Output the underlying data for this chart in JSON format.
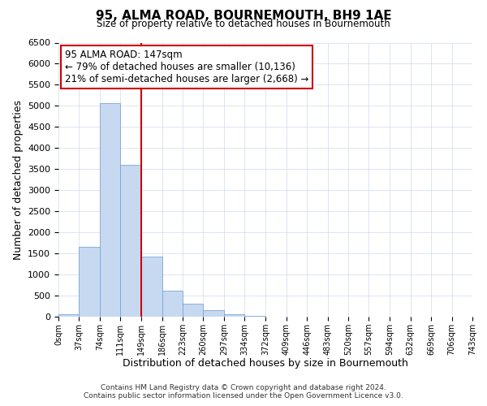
{
  "title": "95, ALMA ROAD, BOURNEMOUTH, BH9 1AE",
  "subtitle": "Size of property relative to detached houses in Bournemouth",
  "xlabel": "Distribution of detached houses by size in Bournemouth",
  "ylabel": "Number of detached properties",
  "bar_edges": [
    0,
    37,
    74,
    111,
    149,
    186,
    223,
    260,
    297,
    334,
    372,
    409,
    446,
    483,
    520,
    557,
    594,
    632,
    669,
    706,
    743
  ],
  "bar_heights": [
    60,
    1650,
    5060,
    3600,
    1430,
    610,
    300,
    145,
    55,
    15,
    5,
    2,
    0,
    0,
    0,
    0,
    0,
    0,
    0,
    0
  ],
  "bar_color": "#c6d9f1",
  "bar_edgecolor": "#7aa6d4",
  "ylim": [
    0,
    6500
  ],
  "yticks": [
    0,
    500,
    1000,
    1500,
    2000,
    2500,
    3000,
    3500,
    4000,
    4500,
    5000,
    5500,
    6000,
    6500
  ],
  "xtick_labels": [
    "0sqm",
    "37sqm",
    "74sqm",
    "111sqm",
    "149sqm",
    "186sqm",
    "223sqm",
    "260sqm",
    "297sqm",
    "334sqm",
    "372sqm",
    "409sqm",
    "446sqm",
    "483sqm",
    "520sqm",
    "557sqm",
    "594sqm",
    "632sqm",
    "669sqm",
    "706sqm",
    "743sqm"
  ],
  "property_line_x": 149,
  "property_line_color": "#cc0000",
  "annotation_title": "95 ALMA ROAD: 147sqm",
  "annotation_line1": "← 79% of detached houses are smaller (10,136)",
  "annotation_line2": "21% of semi-detached houses are larger (2,668) →",
  "annotation_box_color": "#cc0000",
  "footer_line1": "Contains HM Land Registry data © Crown copyright and database right 2024.",
  "footer_line2": "Contains public sector information licensed under the Open Government Licence v3.0.",
  "background_color": "#ffffff",
  "grid_color": "#d0daea"
}
